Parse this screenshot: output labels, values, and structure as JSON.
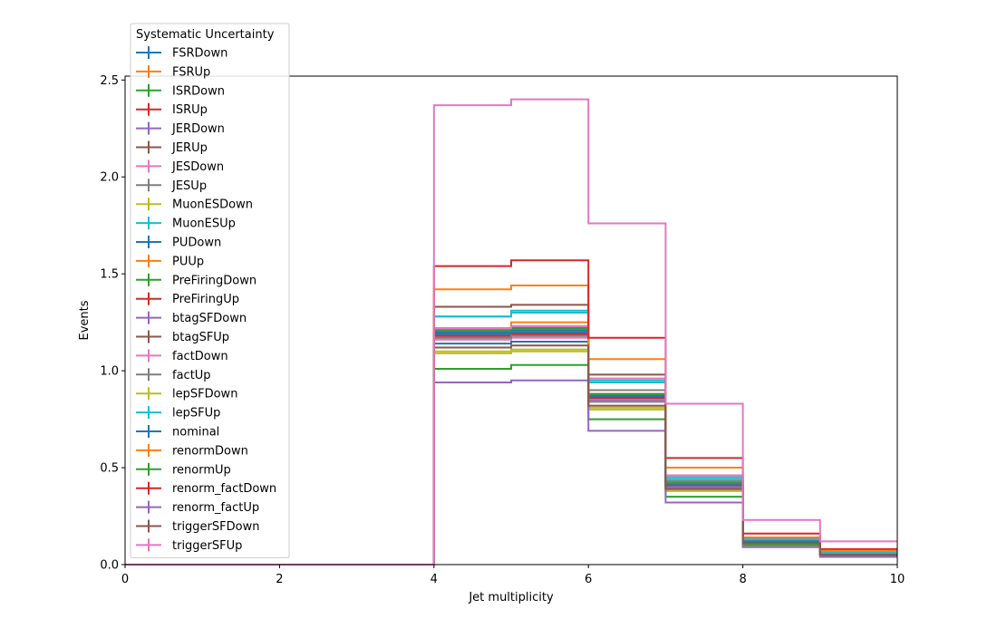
{
  "chart_data": {
    "type": "line",
    "drawstyle": "steps",
    "xlabel": "Jet multiplicity",
    "ylabel": "Events",
    "xlim": [
      0,
      10
    ],
    "ylim": [
      0,
      2.52
    ],
    "xticks": [
      0,
      2,
      4,
      6,
      8,
      10
    ],
    "xtick_labels": [
      "0",
      "2",
      "4",
      "6",
      "8",
      "10"
    ],
    "yticks": [
      0,
      0.5,
      1.0,
      1.5,
      2.0,
      2.5
    ],
    "ytick_labels": [
      "0.0",
      "0.5",
      "1.0",
      "1.5",
      "2.0",
      "2.5"
    ],
    "grid": false,
    "legend": {
      "title": "Systematic Uncertainty",
      "placement": "upper-left"
    },
    "bin_edges": [
      0,
      1,
      2,
      3,
      4,
      5,
      6,
      7,
      8,
      9,
      10
    ],
    "series": [
      {
        "name": "FSRDown",
        "color": "#1f77b4",
        "values": [
          0,
          0,
          0,
          0,
          1.14,
          1.15,
          0.86,
          0.4,
          0.11,
          0.05
        ]
      },
      {
        "name": "FSRUp",
        "color": "#ff7f0e",
        "values": [
          0,
          0,
          0,
          0,
          1.21,
          1.25,
          0.9,
          0.43,
          0.13,
          0.06
        ]
      },
      {
        "name": "ISRDown",
        "color": "#2ca02c",
        "values": [
          0,
          0,
          0,
          0,
          1.19,
          1.2,
          0.87,
          0.41,
          0.12,
          0.05
        ]
      },
      {
        "name": "ISRUp",
        "color": "#d62728",
        "values": [
          0,
          0,
          0,
          0,
          1.2,
          1.21,
          0.88,
          0.42,
          0.12,
          0.05
        ]
      },
      {
        "name": "JERDown",
        "color": "#9467bd",
        "values": [
          0,
          0,
          0,
          0,
          1.18,
          1.19,
          0.86,
          0.41,
          0.11,
          0.05
        ]
      },
      {
        "name": "JERUp",
        "color": "#8c564b",
        "values": [
          0,
          0,
          0,
          0,
          1.19,
          1.2,
          0.87,
          0.41,
          0.12,
          0.05
        ]
      },
      {
        "name": "JESDown",
        "color": "#e377c2",
        "values": [
          0,
          0,
          0,
          0,
          1.16,
          1.17,
          0.85,
          0.4,
          0.11,
          0.05
        ]
      },
      {
        "name": "JESUp",
        "color": "#7f7f7f",
        "values": [
          0,
          0,
          0,
          0,
          1.22,
          1.23,
          0.9,
          0.43,
          0.13,
          0.06
        ]
      },
      {
        "name": "MuonESDown",
        "color": "#bcbd22",
        "values": [
          0,
          0,
          0,
          0,
          1.09,
          1.1,
          0.81,
          0.38,
          0.11,
          0.05
        ]
      },
      {
        "name": "MuonESUp",
        "color": "#17becf",
        "values": [
          0,
          0,
          0,
          0,
          1.28,
          1.31,
          0.95,
          0.45,
          0.13,
          0.06
        ]
      },
      {
        "name": "PUDown",
        "color": "#1f77b4",
        "values": [
          0,
          0,
          0,
          0,
          1.2,
          1.21,
          0.87,
          0.41,
          0.12,
          0.05
        ]
      },
      {
        "name": "PUUp",
        "color": "#ff7f0e",
        "values": [
          0,
          0,
          0,
          0,
          1.19,
          1.2,
          0.86,
          0.41,
          0.12,
          0.05
        ]
      },
      {
        "name": "PreFiringDown",
        "color": "#2ca02c",
        "values": [
          0,
          0,
          0,
          0,
          1.21,
          1.22,
          0.88,
          0.42,
          0.12,
          0.05
        ]
      },
      {
        "name": "PreFiringUp",
        "color": "#d62728",
        "values": [
          0,
          0,
          0,
          0,
          1.18,
          1.19,
          0.86,
          0.41,
          0.11,
          0.05
        ]
      },
      {
        "name": "btagSFDown",
        "color": "#9467bd",
        "values": [
          0,
          0,
          0,
          0,
          1.17,
          1.18,
          0.85,
          0.4,
          0.11,
          0.05
        ]
      },
      {
        "name": "btagSFUp",
        "color": "#8c564b",
        "values": [
          0,
          0,
          0,
          0,
          1.33,
          1.34,
          0.98,
          0.46,
          0.13,
          0.06
        ]
      },
      {
        "name": "factDown",
        "color": "#e377c2",
        "values": [
          0,
          0,
          0,
          0,
          1.22,
          1.23,
          0.96,
          0.46,
          0.13,
          0.06
        ]
      },
      {
        "name": "factUp",
        "color": "#7f7f7f",
        "values": [
          0,
          0,
          0,
          0,
          1.17,
          1.18,
          0.84,
          0.39,
          0.11,
          0.05
        ]
      },
      {
        "name": "lepSFDown",
        "color": "#bcbd22",
        "values": [
          0,
          0,
          0,
          0,
          1.1,
          1.11,
          0.8,
          0.38,
          0.1,
          0.05
        ]
      },
      {
        "name": "lepSFUp",
        "color": "#17becf",
        "values": [
          0,
          0,
          0,
          0,
          1.28,
          1.3,
          0.94,
          0.44,
          0.13,
          0.06
        ]
      },
      {
        "name": "nominal",
        "color": "#1f77b4",
        "values": [
          0,
          0,
          0,
          0,
          1.19,
          1.2,
          0.87,
          0.41,
          0.12,
          0.05
        ]
      },
      {
        "name": "renormDown",
        "color": "#ff7f0e",
        "values": [
          0,
          0,
          0,
          0,
          1.42,
          1.44,
          1.06,
          0.5,
          0.14,
          0.07
        ]
      },
      {
        "name": "renormUp",
        "color": "#2ca02c",
        "values": [
          0,
          0,
          0,
          0,
          1.01,
          1.03,
          0.75,
          0.35,
          0.1,
          0.05
        ]
      },
      {
        "name": "renorm_factDown",
        "color": "#d62728",
        "values": [
          0,
          0,
          0,
          0,
          1.54,
          1.57,
          1.17,
          0.55,
          0.16,
          0.08
        ]
      },
      {
        "name": "renorm_factUp",
        "color": "#9467bd",
        "values": [
          0,
          0,
          0,
          0,
          0.94,
          0.95,
          0.69,
          0.32,
          0.09,
          0.04
        ]
      },
      {
        "name": "triggerSFDown",
        "color": "#8c564b",
        "values": [
          0,
          0,
          0,
          0,
          1.12,
          1.13,
          0.82,
          0.39,
          0.11,
          0.05
        ]
      },
      {
        "name": "triggerSFUp",
        "color": "#e377c2",
        "values": [
          0,
          0,
          0,
          0,
          2.37,
          2.4,
          1.76,
          0.83,
          0.23,
          0.12
        ]
      }
    ]
  }
}
